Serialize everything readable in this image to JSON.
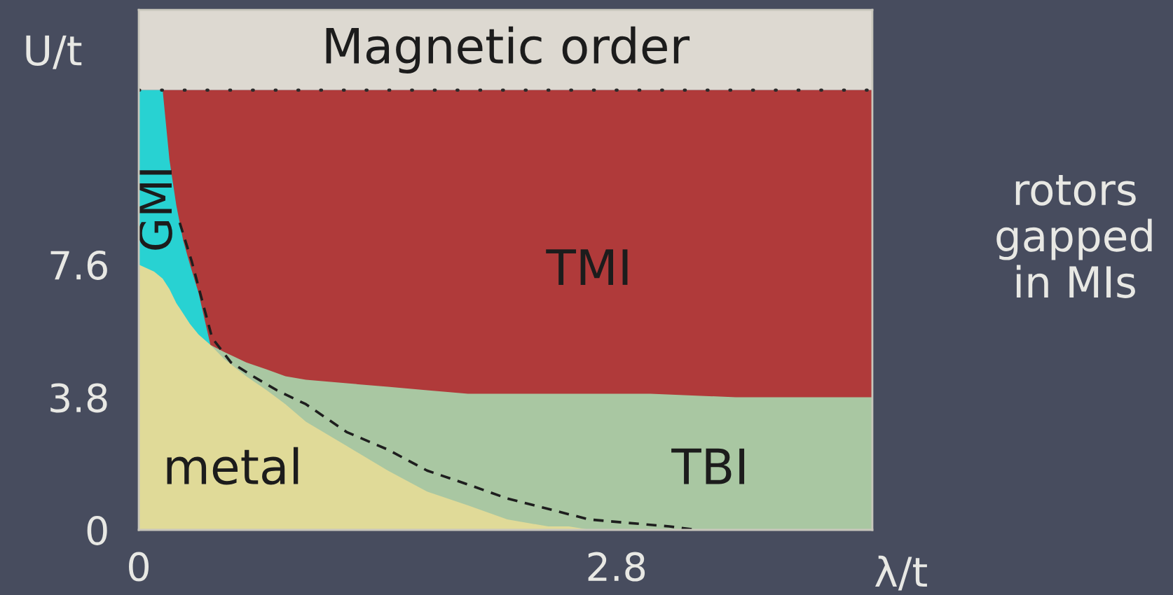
{
  "chart_data": {
    "type": "area",
    "xlabel": "λ/t",
    "ylabel": "U/t",
    "x": [
      0,
      0.09,
      0.14,
      0.18,
      0.22,
      0.26,
      0.3,
      0.35,
      0.42,
      0.5,
      0.63,
      0.75,
      0.86,
      0.98,
      1.22,
      1.46,
      1.69,
      1.93,
      2.16,
      2.4,
      2.52,
      2.65,
      3.0,
      3.5,
      4.0,
      4.3
    ],
    "series": [
      {
        "name": "TMI",
        "color": "#b03a3a",
        "values": [
          null,
          null,
          12.6,
          12.6,
          12.6,
          12.6,
          12.6,
          12.6,
          12.6,
          12.6,
          12.6,
          12.6,
          12.6,
          12.6,
          12.6,
          12.6,
          12.6,
          12.6,
          12.6,
          12.6,
          12.6,
          12.6,
          12.6,
          12.6,
          12.6,
          12.6
        ]
      },
      {
        "name": "GMI",
        "color": "#28d2d2",
        "values": [
          12.6,
          12.6,
          12.6,
          10.6,
          9.3,
          8.3,
          7.6,
          6.8,
          5.3,
          null,
          null,
          null,
          null,
          null,
          null,
          null,
          null,
          null,
          null,
          null,
          null,
          null,
          null,
          null,
          null,
          null
        ]
      },
      {
        "name": "TBI",
        "color": "#a9c7a2",
        "values": [
          null,
          null,
          null,
          null,
          null,
          null,
          null,
          null,
          5.3,
          5.1,
          4.8,
          4.6,
          4.4,
          4.3,
          4.2,
          4.1,
          4.0,
          3.9,
          3.9,
          3.9,
          3.9,
          3.9,
          3.9,
          3.8,
          3.8,
          3.8
        ]
      },
      {
        "name": "metal",
        "color": "#e0da98",
        "values": [
          7.6,
          7.4,
          7.2,
          6.9,
          6.5,
          6.2,
          5.9,
          5.6,
          5.3,
          4.9,
          4.4,
          4.0,
          3.6,
          3.1,
          2.4,
          1.7,
          1.1,
          0.7,
          0.3,
          0.1,
          0.1,
          0,
          0,
          0,
          0,
          0
        ]
      },
      {
        "type": "line",
        "line_style": "dashed",
        "color": "#1e1e1e",
        "x": [
          0.24,
          0.31,
          0.37,
          0.43,
          0.54,
          0.67,
          0.81,
          0.98,
          1.22,
          1.46,
          1.69,
          1.93,
          2.16,
          2.4,
          2.64,
          2.87,
          3.11,
          3.27
        ],
        "values": [
          8.8,
          7.7,
          6.6,
          5.5,
          4.8,
          4.4,
          4.0,
          3.6,
          2.8,
          2.3,
          1.7,
          1.3,
          0.9,
          0.6,
          0.3,
          0.2,
          0.1,
          0
        ]
      }
    ],
    "xlim": [
      0,
      4.3
    ],
    "xticks": [
      0,
      2.8
    ],
    "ylim": [
      0,
      14.9
    ],
    "yticks": [
      0,
      3.8,
      7.6
    ],
    "ref_lines": [
      {
        "axis": "y",
        "value": 12.6,
        "line_style": "dotted",
        "color": "#2a2a2a"
      }
    ],
    "bands": [
      {
        "axis": "y",
        "from": 12.6,
        "to": 14.9,
        "label": "Magnetic order",
        "color": "#ddd9d1"
      }
    ],
    "annotations": [
      "rotors\ngapped\nin MIs"
    ]
  }
}
